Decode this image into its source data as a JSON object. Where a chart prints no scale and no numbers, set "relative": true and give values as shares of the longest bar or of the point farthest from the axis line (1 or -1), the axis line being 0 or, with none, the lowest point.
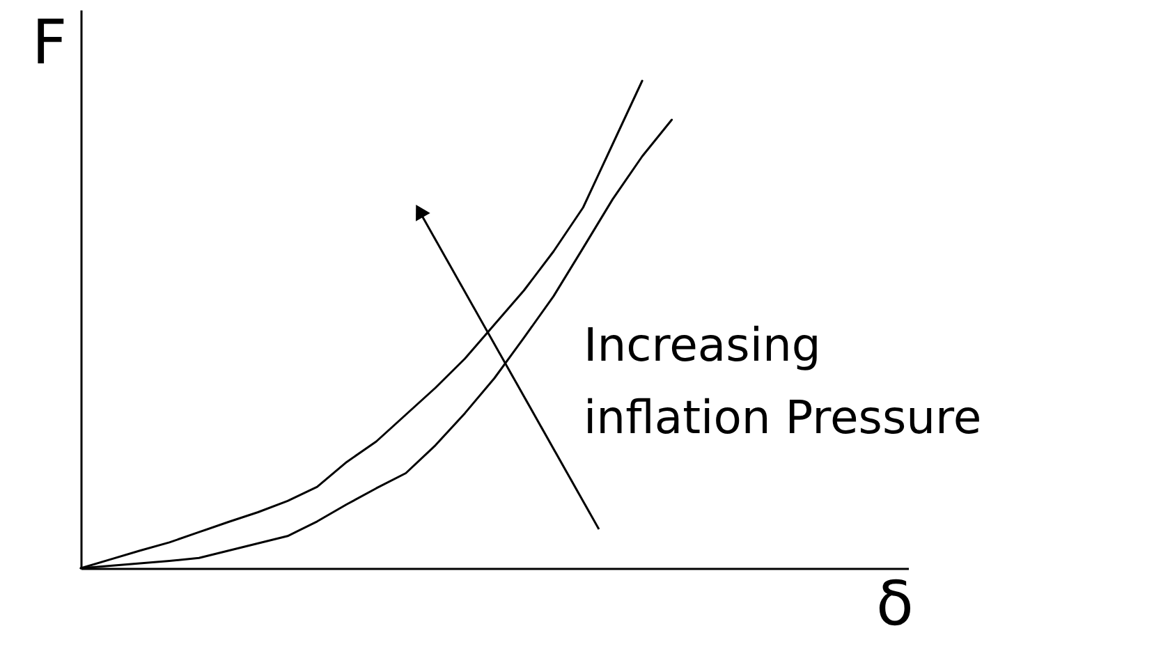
{
  "chart_data": {
    "type": "line",
    "relative": true,
    "xlabel": "δ",
    "ylabel": "F",
    "tick_labels": false,
    "grid": false,
    "line_style": "solid",
    "marker": "none",
    "categories": [
      null,
      null,
      null,
      null,
      null,
      null,
      null,
      null,
      null,
      null,
      null,
      null,
      null,
      null,
      null,
      null,
      null,
      null,
      null,
      null,
      null,
      null,
      null,
      null,
      null,
      null,
      null,
      null,
      null
    ],
    "series": [
      {
        "color": "#000000",
        "values": [
          0,
          0.018,
          0.036,
          0.053,
          0.074,
          0.095,
          0.115,
          0.138,
          0.167,
          0.218,
          0.26,
          0.315,
          0.37,
          0.43,
          0.5,
          0.57,
          0.65,
          0.74,
          0.87,
          1,
          null,
          null,
          null,
          null,
          null,
          null,
          null,
          null,
          null
        ]
      },
      {
        "color": "#000000",
        "values": [
          0,
          0.005,
          0.01,
          0.015,
          0.021,
          0.036,
          0.051,
          0.066,
          0.096,
          0.131,
          0.164,
          0.195,
          0.252,
          0.318,
          0.39,
          0.473,
          0.558,
          0.657,
          0.757,
          0.845,
          0.92,
          null,
          null,
          null,
          null,
          null,
          null,
          null,
          null
        ]
      }
    ],
    "annotations": [
      "Increasing inflation Pressure"
    ]
  }
}
